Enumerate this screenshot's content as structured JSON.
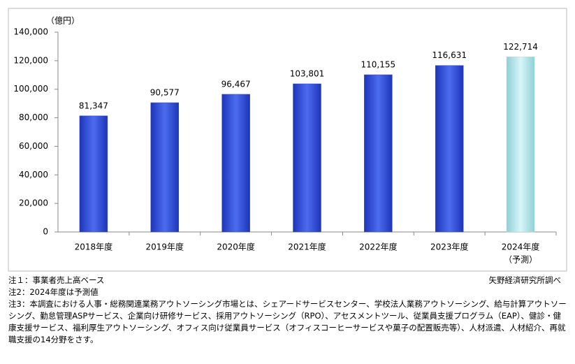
{
  "chart_data": {
    "type": "bar",
    "unit_label": "（億円）",
    "categories": [
      "2018年度",
      "2019年度",
      "2020年度",
      "2021年度",
      "2022年度",
      "2023年度",
      "2024年度"
    ],
    "forecast_note": "（予測）",
    "values": [
      81347,
      90577,
      96467,
      103801,
      110155,
      116631,
      122714
    ],
    "value_labels": [
      "81,347",
      "90,577",
      "96,467",
      "103,801",
      "110,155",
      "116,631",
      "122,714"
    ],
    "forecast": [
      false,
      false,
      false,
      false,
      false,
      false,
      true
    ],
    "color": "#2e4fd6",
    "forecast_color": "#a9e2e6",
    "ylim": [
      0,
      140000
    ],
    "yticks": [
      0,
      {
        "value": 20000,
        "label": "20,000"
      },
      {
        "value": 40000,
        "label": "40,000"
      },
      {
        "value": 60000,
        "label": "60,000"
      },
      {
        "value": 80000,
        "label": "80,000"
      },
      {
        "value": 100000,
        "label": "100,000"
      },
      {
        "value": 120000,
        "label": "120,000"
      },
      {
        "value": 140000,
        "label": "140,000"
      }
    ],
    "grid": false
  },
  "notes": [
    "注１：事業者売上高ベース",
    "注2：2024年度は予測値",
    "注3：本調査における人事・総務関連業務アウトソーシング市場とは、シェアードサービスセンター、学校法人業務アウトソーシング、給与計算アウトソーシング、勤怠管理ASPサービス、企業向け研修サービス、採用アウトソーシング（RPO）、アセスメントツール、従業員支援プログラム（EAP）、健診・健康支援サービス、福利厚生アウトソーシング、オフィス向け従業員サービス（オフィスコーヒーサービスや菓子の配置販売等）、人材派遣、人材紹介、再就職支援の14分野をさす。"
  ],
  "source": "矢野経済研究所調べ"
}
